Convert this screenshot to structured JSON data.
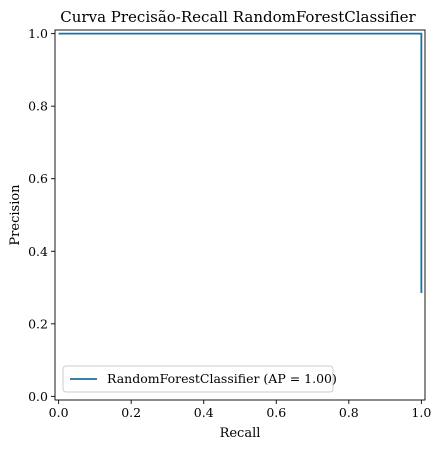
{
  "chart_data": {
    "type": "line",
    "title": "Curva Precisão-Recall RandomForestClassifier",
    "xlabel": "Recall",
    "ylabel": "Precision",
    "xlim": [
      -0.01,
      1.01
    ],
    "ylim": [
      -0.01,
      1.01
    ],
    "xticks": [
      0.0,
      0.2,
      0.4,
      0.6,
      0.8,
      1.0
    ],
    "xtick_labels": [
      "0.0",
      "0.2",
      "0.4",
      "0.6",
      "0.8",
      "1.0"
    ],
    "yticks": [
      0.0,
      0.2,
      0.4,
      0.6,
      0.8,
      1.0
    ],
    "ytick_labels": [
      "0.0",
      "0.2",
      "0.4",
      "0.6",
      "0.8",
      "1.0"
    ],
    "grid": false,
    "legend": {
      "placement": "lower-left",
      "entry": "RandomForestClassifier (AP = 1.00)"
    },
    "series": [
      {
        "name": "RandomForestClassifier (AP = 1.00)",
        "color": "#1f6f9f",
        "points": [
          {
            "x": 0.0,
            "y": 1.0
          },
          {
            "x": 1.0,
            "y": 1.0
          },
          {
            "x": 1.0,
            "y": 0.285
          }
        ]
      }
    ]
  }
}
